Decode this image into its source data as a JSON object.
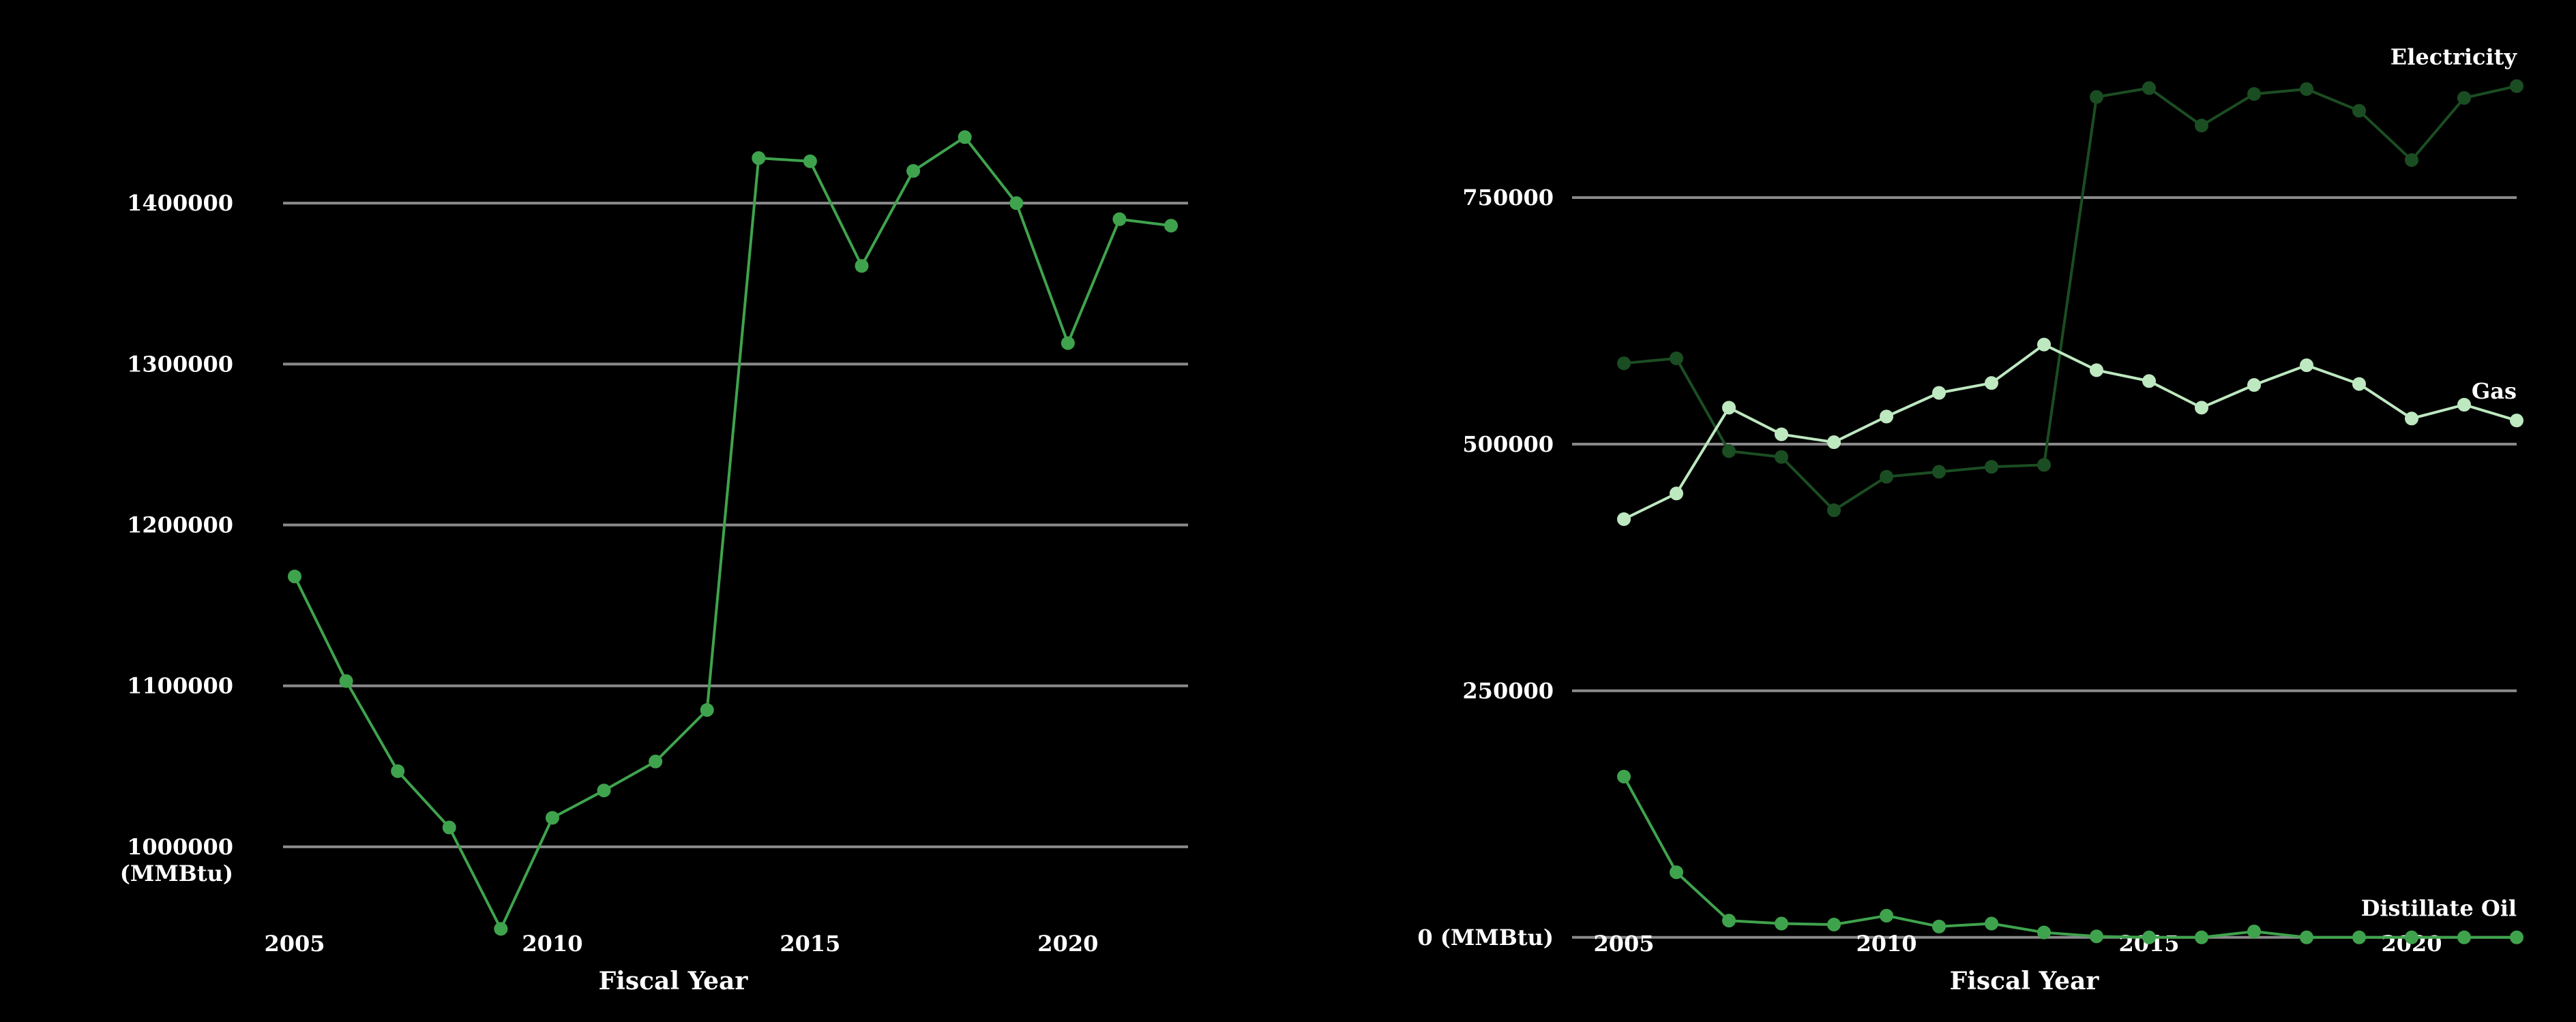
{
  "chart_data": [
    {
      "type": "line",
      "x": [
        2005,
        2006,
        2007,
        2008,
        2009,
        2010,
        2011,
        2012,
        2013,
        2014,
        2015,
        2016,
        2017,
        2018,
        2019,
        2020,
        2021,
        2022
      ],
      "series": [
        {
          "color": "#3fa34d",
          "values": [
            1168000,
            1103000,
            1047000,
            1012000,
            949000,
            1018000,
            1035000,
            1053000,
            1085000,
            1428000,
            1426000,
            1361000,
            1420000,
            1441000,
            1400000,
            1313000,
            1390000,
            1386000
          ]
        }
      ],
      "x_ticks": [
        "2005",
        "2010",
        "2015",
        "2020"
      ],
      "y_ticks": [
        "1000000",
        "1100000",
        "1200000",
        "1300000",
        "1400000"
      ],
      "y_tick_values": [
        1000000,
        1100000,
        1200000,
        1300000,
        1400000
      ],
      "y_unit": "(MMBtu)",
      "xlabel": "Fiscal Year",
      "xlim": [
        2005,
        2022
      ],
      "ylim": [
        925000,
        1475000
      ],
      "grid": "horizontal"
    },
    {
      "type": "line",
      "x": [
        2005,
        2006,
        2007,
        2008,
        2009,
        2010,
        2011,
        2012,
        2013,
        2014,
        2015,
        2016,
        2017,
        2018,
        2019,
        2020,
        2021,
        2022
      ],
      "series": [
        {
          "name": "Electricity",
          "color": "#1b4d22",
          "values": [
            582000,
            587000,
            493000,
            487000,
            433000,
            467000,
            472000,
            477000,
            479000,
            852000,
            861000,
            823000,
            855000,
            860000,
            838000,
            788000,
            851000,
            863000
          ]
        },
        {
          "name": "Gas",
          "color": "#bde8c0",
          "values": [
            424000,
            450000,
            537000,
            510000,
            502000,
            528000,
            552000,
            562000,
            601000,
            575000,
            564000,
            537000,
            560000,
            580000,
            561000,
            526000,
            540000,
            524000
          ]
        },
        {
          "name": "Distillate Oil",
          "color": "#3fa34d",
          "values": [
            163000,
            66000,
            17000,
            14000,
            13000,
            22000,
            11000,
            14000,
            5000,
            1000,
            0,
            0,
            6000,
            0,
            0,
            0,
            0,
            0
          ]
        }
      ],
      "x_ticks": [
        "2005",
        "2010",
        "2015",
        "2020"
      ],
      "y_ticks": [
        "0 (MMBtu)",
        "250000",
        "500000",
        "750000"
      ],
      "y_tick_values": [
        0,
        250000,
        500000,
        750000
      ],
      "xlabel": "Fiscal Year",
      "xlim": [
        2005,
        2022
      ],
      "ylim": [
        -25000,
        875000
      ],
      "grid": "horizontal",
      "legend": "inline-right"
    }
  ]
}
